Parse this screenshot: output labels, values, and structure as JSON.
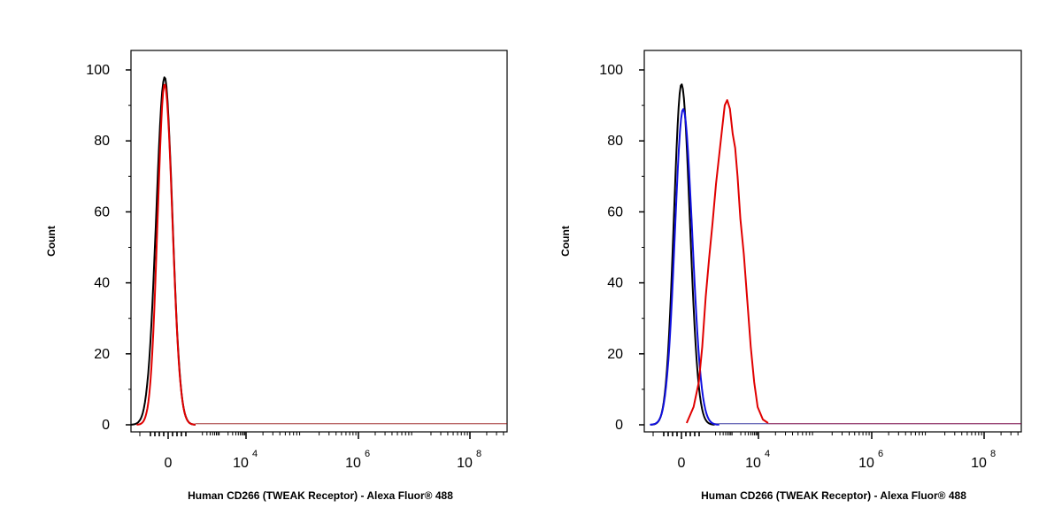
{
  "chart_data": [
    {
      "type": "line",
      "ylabel": "Count",
      "xlabel": "Human CD266 (TWEAK Receptor) - Alexa Fluor® 488",
      "ylim": [
        0,
        100
      ],
      "yticks": [
        "0",
        "20",
        "40",
        "60",
        "80",
        "100"
      ],
      "xticks": [
        {
          "base": "0",
          "exp": ""
        },
        {
          "base": "10",
          "exp": "4"
        },
        {
          "base": "10",
          "exp": "6"
        },
        {
          "base": "10",
          "exp": "8"
        }
      ],
      "series": [
        {
          "color": "#000000",
          "peak_x": -0.1,
          "peak_y": 98,
          "width_left": 0.24,
          "width_right": 0.22
        },
        {
          "color": "#e00000",
          "peak_x": -0.1,
          "peak_y": 96,
          "width_left": 0.2,
          "width_right": 0.22
        }
      ]
    },
    {
      "type": "line",
      "ylabel": "Count",
      "xlabel": "Human CD266 (TWEAK Receptor) - Alexa Fluor® 488",
      "ylim": [
        0,
        100
      ],
      "yticks": [
        "0",
        "20",
        "40",
        "60",
        "80",
        "100"
      ],
      "xticks": [
        {
          "base": "0",
          "exp": ""
        },
        {
          "base": "10",
          "exp": "4"
        },
        {
          "base": "10",
          "exp": "6"
        },
        {
          "base": "10",
          "exp": "8"
        }
      ],
      "series": [
        {
          "color": "#000000",
          "peak_x": 0.0,
          "peak_y": 96,
          "width_left": 0.22,
          "width_right": 0.24
        },
        {
          "color": "#1010e0",
          "peak_x": 0.05,
          "peak_y": 89,
          "width_left": 0.24,
          "width_right": 0.26
        },
        {
          "color": "#e00000",
          "points": [
            [
              0.15,
              0.5
            ],
            [
              0.35,
              5
            ],
            [
              0.5,
              12
            ],
            [
              0.6,
              22
            ],
            [
              0.7,
              36
            ],
            [
              0.8,
              47
            ],
            [
              0.9,
              57
            ],
            [
              1.0,
              68
            ],
            [
              1.1,
              77
            ],
            [
              1.18,
              84
            ],
            [
              1.25,
              90
            ],
            [
              1.32,
              91.5
            ],
            [
              1.4,
              89
            ],
            [
              1.48,
              82
            ],
            [
              1.55,
              78
            ],
            [
              1.62,
              70
            ],
            [
              1.7,
              58
            ],
            [
              1.8,
              48
            ],
            [
              1.9,
              35
            ],
            [
              2.0,
              22
            ],
            [
              2.1,
              12
            ],
            [
              2.2,
              5
            ],
            [
              2.35,
              1.5
            ],
            [
              2.5,
              0.5
            ]
          ]
        }
      ]
    }
  ]
}
